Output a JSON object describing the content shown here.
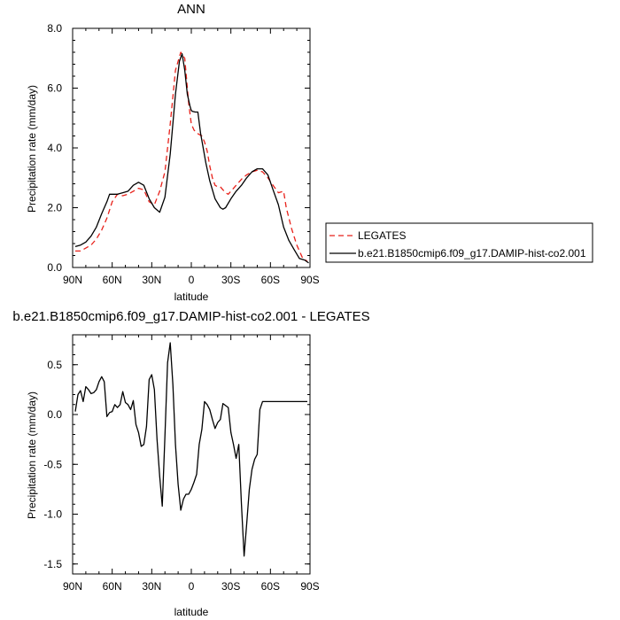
{
  "chart_data": [
    {
      "type": "line",
      "title": "ANN",
      "xlabel": "latitude",
      "ylabel": "Precipitation rate (mm/day)",
      "ylim": [
        0,
        8
      ],
      "xlim": [
        90,
        -90
      ],
      "x_ticks": [
        90,
        60,
        30,
        0,
        -30,
        -60,
        -90
      ],
      "x_tick_labels": [
        "90N",
        "60N",
        "30N",
        "0",
        "30S",
        "60S",
        "90S"
      ],
      "y_ticks": [
        0,
        2,
        4,
        6,
        8
      ],
      "y_tick_labels": [
        "0.0",
        "2.0",
        "4.0",
        "6.0",
        "8.0"
      ],
      "legend_placement": "right",
      "series": [
        {
          "name": "LEGATES",
          "color": "#e8211a",
          "dash": "dashed",
          "x": [
            88,
            84,
            80,
            76,
            72,
            68,
            64,
            60,
            56,
            52,
            48,
            44,
            40,
            36,
            32,
            28,
            24,
            20,
            16,
            12,
            8,
            5,
            2,
            0,
            -2,
            -4,
            -6,
            -8,
            -10,
            -12,
            -14,
            -16,
            -18,
            -20,
            -22,
            -24,
            -26,
            -28,
            -30,
            -34,
            -38,
            -42,
            -46,
            -50,
            -54,
            -58,
            -62,
            -66,
            -70,
            -72,
            -76,
            -80,
            -84,
            -88
          ],
          "values": [
            0.55,
            0.55,
            0.65,
            0.75,
            0.95,
            1.25,
            1.65,
            2.2,
            2.45,
            2.4,
            2.45,
            2.55,
            2.65,
            2.6,
            2.2,
            2.1,
            2.55,
            3.2,
            4.8,
            6.6,
            7.2,
            7.0,
            5.5,
            4.8,
            4.6,
            4.5,
            4.45,
            4.4,
            4.2,
            3.9,
            3.4,
            3.0,
            2.75,
            2.7,
            2.7,
            2.6,
            2.5,
            2.45,
            2.55,
            2.75,
            2.95,
            3.1,
            3.2,
            3.25,
            3.2,
            3.0,
            2.75,
            2.5,
            2.55,
            2.0,
            1.3,
            0.75,
            0.35,
            0.2
          ]
        },
        {
          "name": "b.e21.B1850cmip6.f09_g17.DAMIP-hist-co2.001",
          "color": "#000000",
          "dash": "solid",
          "x": [
            88,
            84,
            80,
            76,
            72,
            68,
            64,
            62,
            60,
            56,
            52,
            48,
            44,
            40,
            36,
            32,
            28,
            24,
            20,
            16,
            12,
            9,
            7,
            5,
            3,
            1,
            0,
            -1,
            -3,
            -5,
            -7,
            -9,
            -11,
            -14,
            -18,
            -22,
            -24,
            -26,
            -30,
            -34,
            -38,
            -42,
            -46,
            -50,
            -54,
            -58,
            -62,
            -66,
            -70,
            -74,
            -78,
            -82,
            -86,
            -89
          ],
          "values": [
            0.7,
            0.75,
            0.85,
            1.05,
            1.35,
            1.8,
            2.2,
            2.45,
            2.45,
            2.45,
            2.5,
            2.55,
            2.75,
            2.85,
            2.75,
            2.3,
            2.0,
            1.85,
            2.35,
            3.8,
            5.8,
            6.9,
            7.15,
            6.6,
            5.8,
            5.4,
            5.25,
            5.22,
            5.2,
            5.2,
            4.5,
            4.0,
            3.5,
            2.9,
            2.3,
            2.0,
            1.95,
            2.0,
            2.3,
            2.55,
            2.75,
            3.0,
            3.2,
            3.3,
            3.3,
            3.1,
            2.6,
            2.1,
            1.35,
            0.9,
            0.6,
            0.3,
            0.25,
            0.15
          ]
        }
      ]
    },
    {
      "type": "line",
      "title": "b.e21.B1850cmip6.f09_g17.DAMIP-hist-co2.001 - LEGATES",
      "xlabel": "latitude",
      "ylabel": "Precipitation rate (mm/day)",
      "ylim": [
        -1.6,
        0.8
      ],
      "xlim": [
        90,
        -90
      ],
      "x_ticks": [
        90,
        60,
        30,
        0,
        -30,
        -60,
        -90
      ],
      "x_tick_labels": [
        "90N",
        "60N",
        "30N",
        "0",
        "30S",
        "60S",
        "90S"
      ],
      "y_ticks": [
        -1.5,
        -1.0,
        -0.5,
        0.0,
        0.5
      ],
      "y_tick_labels": [
        "-1.5",
        "-1.0",
        "-0.5",
        "0.0",
        "0.5"
      ],
      "series": [
        {
          "color": "#000000",
          "x": [
            88,
            86,
            84,
            82,
            80,
            78,
            76,
            74,
            72,
            70,
            68,
            66,
            64,
            62,
            60,
            58,
            56,
            54,
            52,
            50,
            48,
            46,
            44,
            42,
            40,
            38,
            36,
            34,
            32,
            30,
            28,
            26,
            24,
            22,
            20,
            18,
            16,
            14,
            12,
            10,
            8,
            6,
            4,
            2,
            0,
            -2,
            -4,
            -6,
            -8,
            -10,
            -12,
            -14,
            -16,
            -18,
            -20,
            -22,
            -24,
            -26,
            -28,
            -30,
            -32,
            -34,
            -36,
            -38,
            -40,
            -42,
            -44,
            -46,
            -48,
            -50,
            -52,
            -54,
            -56,
            -58,
            -60,
            -62,
            -64,
            -66,
            -68,
            -70,
            -72,
            -74,
            -76,
            -78,
            -80,
            -82,
            -84,
            -86,
            -88
          ],
          "values": [
            0.03,
            0.2,
            0.24,
            0.13,
            0.28,
            0.25,
            0.21,
            0.22,
            0.25,
            0.33,
            0.38,
            0.33,
            -0.02,
            0.02,
            0.03,
            0.1,
            0.07,
            0.1,
            0.23,
            0.12,
            0.1,
            0.05,
            0.14,
            -0.1,
            -0.18,
            -0.32,
            -0.3,
            -0.12,
            0.35,
            0.4,
            0.25,
            -0.25,
            -0.62,
            -0.92,
            -0.22,
            0.52,
            0.72,
            0.3,
            -0.3,
            -0.7,
            -0.96,
            -0.85,
            -0.8,
            -0.8,
            -0.75,
            -0.68,
            -0.6,
            -0.3,
            -0.15,
            0.13,
            0.1,
            0.05,
            -0.05,
            -0.14,
            -0.08,
            -0.05,
            0.11,
            0.09,
            0.07,
            -0.18,
            -0.3,
            -0.44,
            -0.3,
            -0.9,
            -1.42,
            -1.1,
            -0.75,
            -0.55,
            -0.45,
            -0.4,
            0.05,
            0.13,
            0.13,
            0.13,
            0.13,
            0.13,
            0.13,
            0.13,
            0.13,
            0.13,
            0.13,
            0.13,
            0.13,
            0.13,
            0.13,
            0.13,
            0.13,
            0.13,
            0.13
          ]
        }
      ]
    }
  ]
}
